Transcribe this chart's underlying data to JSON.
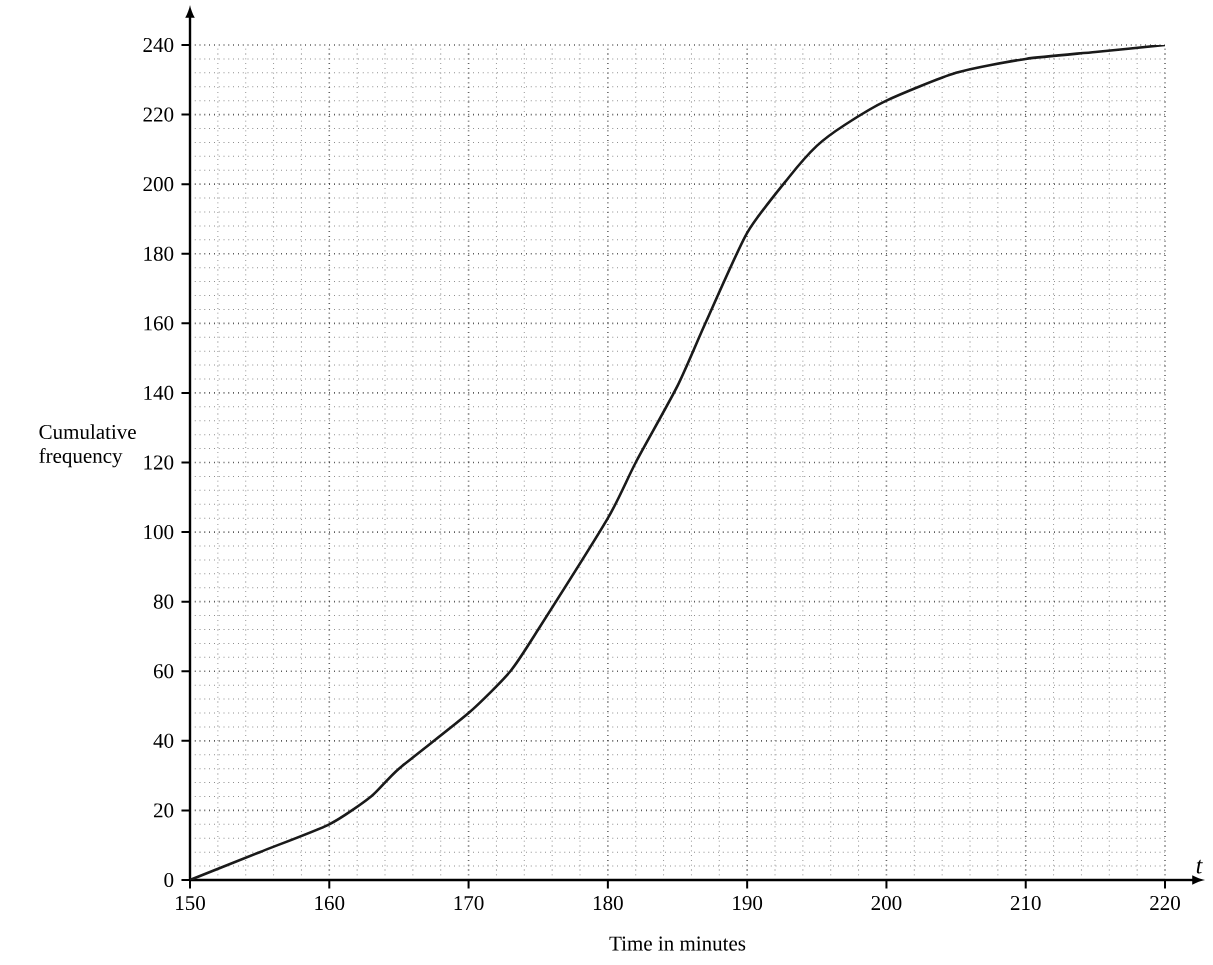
{
  "chart_data": {
    "type": "line",
    "xlabel": "Time in minutes",
    "ylabel": "Cumulative frequency",
    "annotations": [
      "t"
    ],
    "x": [
      150,
      155,
      160,
      163,
      165,
      170,
      173,
      175,
      180,
      182,
      185,
      187,
      190,
      193,
      195,
      197,
      200,
      205,
      210,
      215,
      220
    ],
    "series": [
      {
        "color": "#1a1a1a",
        "values": [
          0,
          8,
          16,
          24,
          32,
          48,
          60,
          72,
          104,
          120,
          142,
          160,
          186,
          202,
          211,
          217,
          224,
          232,
          236,
          238,
          240
        ]
      }
    ],
    "xlim": [
      150,
      220
    ],
    "ylim": [
      0,
      240
    ],
    "xticks": [
      150,
      160,
      170,
      180,
      190,
      200,
      210,
      220
    ],
    "yticks": [
      0,
      20,
      40,
      60,
      80,
      100,
      120,
      140,
      160,
      180,
      200,
      220,
      240
    ],
    "grid": true,
    "marker": "none",
    "line_style": "solid"
  }
}
